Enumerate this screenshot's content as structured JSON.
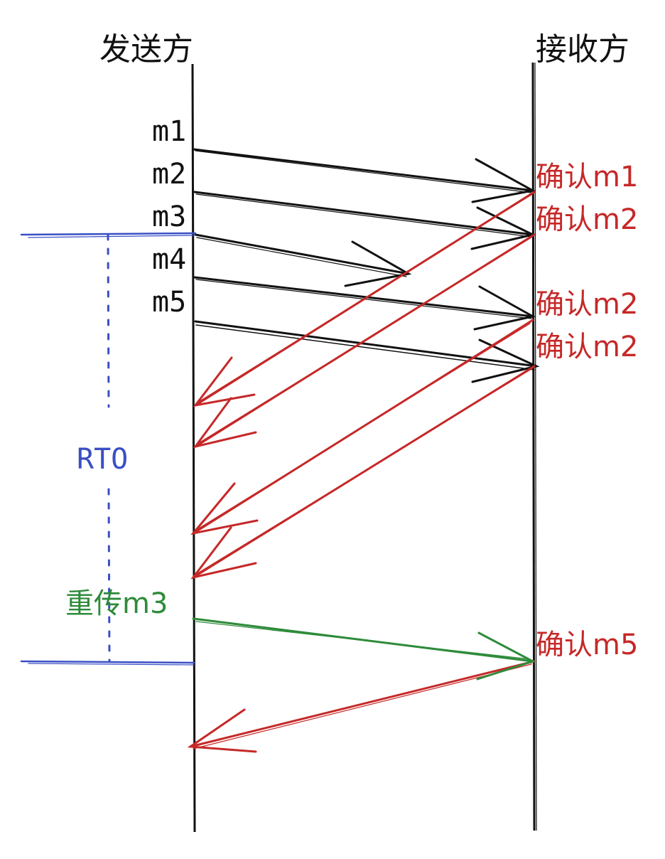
{
  "headers": {
    "sender": "发送方",
    "receiver": "接收方"
  },
  "messages": [
    {
      "id": "m1",
      "label": "m1",
      "delivered": true
    },
    {
      "id": "m2",
      "label": "m2",
      "delivered": true
    },
    {
      "id": "m3",
      "label": "m3",
      "delivered": false
    },
    {
      "id": "m4",
      "label": "m4",
      "delivered": true
    },
    {
      "id": "m5",
      "label": "m5",
      "delivered": true
    }
  ],
  "acks": [
    {
      "label": "确认m1"
    },
    {
      "label": "确认m2"
    },
    {
      "label": "确认m2"
    },
    {
      "label": "确认m2"
    },
    {
      "label": "确认m5"
    }
  ],
  "timer": {
    "label": "RTO"
  },
  "retransmit": {
    "label": "重传m3"
  },
  "colors": {
    "line": "#111111",
    "ack": "#c62828",
    "timer": "#3a4fc4",
    "retransmit": "#2e8b3a"
  }
}
